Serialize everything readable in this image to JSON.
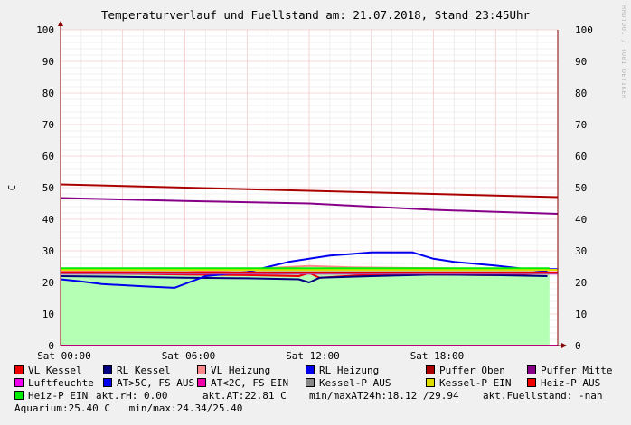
{
  "chart_data": {
    "type": "line",
    "title": "Temperaturverlauf und Fuellstand am: 21.07.2018, Stand 23:45Uhr",
    "ylabel": "C",
    "ylim": [
      0,
      100
    ],
    "y_ticks": [
      "0",
      "10",
      "20",
      "30",
      "40",
      "50",
      "60",
      "70",
      "80",
      "90",
      "100"
    ],
    "x_range_hours": [
      0,
      24
    ],
    "x_ticks": [
      {
        "hour": 0,
        "label": "Sat 00:00"
      },
      {
        "hour": 6,
        "label": "Sat 06:00"
      },
      {
        "hour": 12,
        "label": "Sat 12:00"
      },
      {
        "hour": 18,
        "label": "Sat 18:00"
      }
    ],
    "grid": true,
    "credit": "RRDTOOL / TOBI OETIKER",
    "series": [
      {
        "name": "VL Kessel",
        "color": "#ee0000",
        "x": [
          0,
          3,
          6,
          9,
          11.5,
          12,
          12.5,
          15,
          18,
          21,
          23.5
        ],
        "y": [
          23,
          22.8,
          22.5,
          22.3,
          22,
          23,
          21.5,
          22.5,
          22.5,
          22.3,
          23
        ]
      },
      {
        "name": "RL Kessel",
        "color": "#000080",
        "x": [
          0,
          3,
          6,
          9,
          11.5,
          12,
          12.5,
          15,
          18,
          21,
          23.5
        ],
        "y": [
          22,
          21.8,
          21.5,
          21.3,
          21,
          20,
          21.5,
          22,
          22.5,
          22.3,
          22
        ]
      },
      {
        "name": "VL Heizung",
        "color": "#ff8888",
        "x": [
          0,
          6,
          12,
          14,
          18,
          21,
          23.5
        ],
        "y": [
          23.5,
          23.2,
          25.2,
          24.8,
          24.5,
          24.3,
          24.2
        ]
      },
      {
        "name": "RL Heizung",
        "color": "#0000ee",
        "x": [
          0,
          1,
          2,
          4,
          5.5,
          7,
          9,
          11,
          12,
          13,
          15,
          17,
          18,
          19,
          21,
          23.5
        ],
        "y": [
          21,
          20.3,
          19.5,
          18.8,
          18.3,
          22,
          23.3,
          26.5,
          27.5,
          28.5,
          29.5,
          29.5,
          27.5,
          26.5,
          25.3,
          23.5
        ]
      },
      {
        "name": "Puffer Oben",
        "color": "#aa0000",
        "x": [
          0,
          6,
          12,
          18,
          24
        ],
        "y": [
          51,
          50,
          49,
          48,
          47
        ]
      },
      {
        "name": "Puffer Mitte",
        "color": "#880088",
        "x": [
          0,
          6,
          12,
          13.5,
          18,
          24
        ],
        "y": [
          46.7,
          45.8,
          45,
          44.5,
          43,
          41.7
        ]
      },
      {
        "name": "Luftfeuchte",
        "color": "#ee00ee",
        "x": [
          0,
          24
        ],
        "y": [
          0,
          0
        ]
      },
      {
        "name": "AT>5C, FS AUS",
        "color": "#0000ee",
        "x": [
          0,
          24
        ],
        "y": [
          24.2,
          24.2
        ]
      },
      {
        "name": "AT<2C, FS EIN",
        "color": "#ee00aa",
        "x": [
          0,
          24
        ],
        "y": [
          22.8,
          22.8
        ]
      },
      {
        "name": "Kessel-P AUS",
        "color": "#888888",
        "x": [
          0,
          24
        ],
        "y": [
          23,
          23
        ]
      },
      {
        "name": "Kessel-P EIN",
        "color": "#dddd00",
        "x": [
          0,
          24
        ],
        "y": [
          24,
          24
        ]
      },
      {
        "name": "Heiz-P AUS",
        "color": "#ee0000",
        "x": [
          0,
          24
        ],
        "y": [
          23.2,
          23.2
        ]
      },
      {
        "name": "Heiz-P EIN",
        "color": "#00ee00",
        "x": [
          0,
          23.6
        ],
        "y": [
          24.5,
          24.5
        ],
        "area": true,
        "area_color": "#b4ffb4"
      }
    ]
  },
  "stats": {
    "rh": "akt.rH: 0.00",
    "at": "akt.AT:22.81 C",
    "minmax": "min/maxAT24h:18.12 /29.94",
    "fuellstand": "akt.Fuellstand: -nan",
    "aquarium": "Aquarium:25.40 C",
    "aq_minmax": "min/max:24.34/25.40"
  }
}
